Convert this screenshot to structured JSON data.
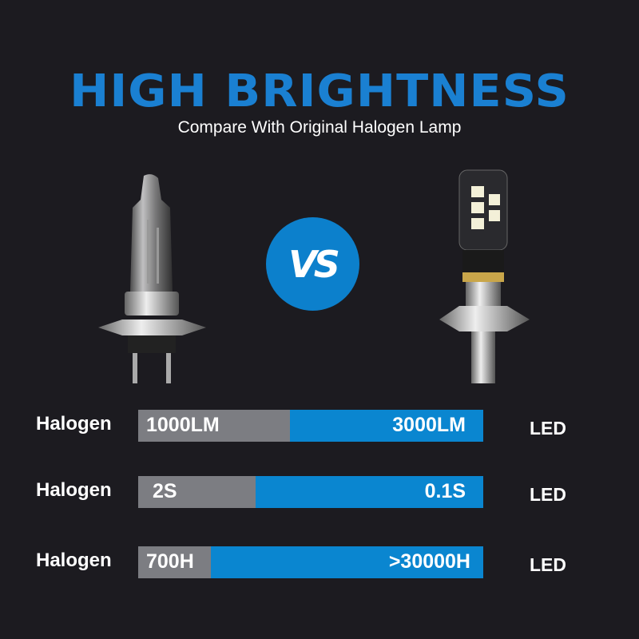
{
  "header": {
    "title": "HIGH BRIGHTNESS",
    "subtitle": "Compare With Original Halogen Lamp"
  },
  "vs_badge": "VS",
  "colors": {
    "accent": "#1a80d2",
    "bar_led": "#0a86d0",
    "bar_halogen": "#7c7d82",
    "background": "#1c1b20"
  },
  "comparisons": [
    {
      "left_label": "Halogen",
      "halogen_value": "1000LM",
      "led_value": "3000LM",
      "right_label": "LED",
      "halogen_fraction": 0.44
    },
    {
      "left_label": "Halogen",
      "halogen_value": "2S",
      "led_value": "0.1S",
      "right_label": "LED",
      "halogen_fraction": 0.34
    },
    {
      "left_label": "Halogen",
      "halogen_value": "700H",
      "led_value": ">30000H",
      "right_label": "LED",
      "halogen_fraction": 0.21
    }
  ]
}
